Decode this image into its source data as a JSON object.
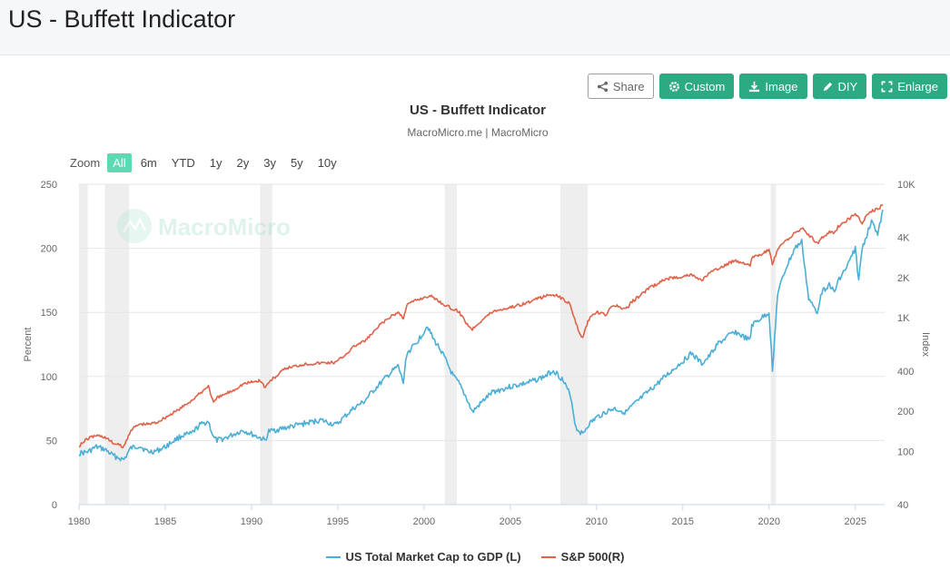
{
  "page": {
    "title": "US - Buffett Indicator"
  },
  "toolbar": {
    "share": "Share",
    "custom": "Custom",
    "image": "Image",
    "diy": "DIY",
    "enlarge": "Enlarge"
  },
  "zoom": {
    "label": "Zoom",
    "options": [
      "All",
      "6m",
      "YTD",
      "1y",
      "2y",
      "3y",
      "5y",
      "10y"
    ],
    "selected": "All"
  },
  "watermark": "MacroMicro",
  "colors": {
    "left_series": "#4aaed6",
    "right_series": "#e0624a",
    "accent": "#2eaa83",
    "recession": "#eeeeee"
  },
  "chart_data": {
    "type": "line",
    "title": "US - Buffett Indicator",
    "subtitle": "MacroMicro.me | MacroMicro",
    "xlabel": "",
    "x_ticks": [
      "1980",
      "1985",
      "1990",
      "1995",
      "2000",
      "2005",
      "2010",
      "2015",
      "2020",
      "2025"
    ],
    "xlim": [
      1980,
      2026.7
    ],
    "y_left": {
      "label": "Percent",
      "lim": [
        0,
        250
      ],
      "ticks": [
        "0",
        "50",
        "100",
        "150",
        "200",
        "250"
      ]
    },
    "y_right": {
      "label": "Index",
      "scale": "log",
      "lim": [
        40,
        10000
      ],
      "ticks": [
        40,
        100,
        200,
        400,
        1000,
        2000,
        4000,
        10000
      ],
      "tick_labels": [
        "40",
        "100",
        "200",
        "400",
        "1K",
        "2K",
        "4K",
        "10K"
      ]
    },
    "recessions": [
      [
        1980.0,
        1980.5
      ],
      [
        1981.5,
        1982.9
      ],
      [
        1990.5,
        1991.2
      ],
      [
        2001.2,
        2001.9
      ],
      [
        2007.9,
        2009.5
      ],
      [
        2020.1,
        2020.4
      ]
    ],
    "grid": true,
    "legend_position": "bottom",
    "series": [
      {
        "name": "US Total Market Cap to GDP (L)",
        "axis": "left",
        "x": [
          1980.0,
          1980.5,
          1981.0,
          1981.5,
          1982.0,
          1982.6,
          1983.0,
          1983.5,
          1984.0,
          1984.5,
          1985.0,
          1985.5,
          1986.0,
          1986.5,
          1987.0,
          1987.5,
          1987.8,
          1988.0,
          1988.5,
          1989.0,
          1989.5,
          1990.0,
          1990.5,
          1990.8,
          1991.0,
          1992.0,
          1993.0,
          1994.0,
          1994.9,
          1995.5,
          1996.0,
          1996.5,
          1997.0,
          1997.5,
          1998.0,
          1998.5,
          1998.8,
          1999.0,
          1999.5,
          2000.0,
          2000.2,
          2000.5,
          2001.0,
          2001.7,
          2002.0,
          2002.5,
          2002.8,
          2003.0,
          2003.5,
          2004.0,
          2005.0,
          2006.0,
          2007.0,
          2007.5,
          2008.0,
          2008.5,
          2008.8,
          2009.2,
          2009.5,
          2010.0,
          2010.5,
          2011.0,
          2011.7,
          2012.0,
          2013.0,
          2014.0,
          2015.0,
          2015.5,
          2016.1,
          2016.5,
          2017.0,
          2018.0,
          2018.9,
          2019.0,
          2019.5,
          2020.0,
          2020.2,
          2020.5,
          2021.0,
          2021.5,
          2021.9,
          2022.3,
          2022.8,
          2023.0,
          2023.5,
          2023.8,
          2024.0,
          2024.5,
          2025.0,
          2025.2,
          2025.4,
          2025.7,
          2026.0,
          2026.3,
          2026.6
        ],
        "values": [
          40,
          41,
          45,
          43,
          38,
          35,
          44,
          46,
          41,
          42,
          45,
          50,
          54,
          55,
          62,
          65,
          52,
          50,
          52,
          55,
          58,
          55,
          52,
          50,
          57,
          60,
          63,
          66,
          62,
          70,
          76,
          80,
          88,
          95,
          102,
          108,
          95,
          118,
          125,
          135,
          140,
          130,
          120,
          100,
          95,
          82,
          72,
          75,
          82,
          88,
          92,
          95,
          100,
          105,
          98,
          85,
          60,
          55,
          62,
          68,
          72,
          75,
          72,
          76,
          88,
          100,
          112,
          118,
          110,
          115,
          125,
          135,
          128,
          140,
          145,
          150,
          105,
          165,
          185,
          200,
          205,
          160,
          150,
          165,
          172,
          165,
          175,
          185,
          200,
          175,
          200,
          212,
          222,
          210,
          230
        ]
      },
      {
        "name": "S&P 500(R)",
        "axis": "right",
        "x": [
          1980.0,
          1980.5,
          1981.0,
          1981.5,
          1982.0,
          1982.6,
          1983.0,
          1983.5,
          1984.0,
          1984.5,
          1985.0,
          1985.5,
          1986.0,
          1986.5,
          1987.0,
          1987.5,
          1987.8,
          1988.0,
          1988.5,
          1989.0,
          1989.5,
          1990.0,
          1990.5,
          1990.8,
          1991.0,
          1992.0,
          1993.0,
          1994.0,
          1994.9,
          1995.5,
          1996.0,
          1996.5,
          1997.0,
          1997.5,
          1998.0,
          1998.5,
          1998.8,
          1999.0,
          1999.5,
          2000.0,
          2000.2,
          2000.5,
          2001.0,
          2001.7,
          2002.0,
          2002.5,
          2002.8,
          2003.0,
          2003.5,
          2004.0,
          2005.0,
          2006.0,
          2007.0,
          2007.5,
          2008.0,
          2008.5,
          2008.8,
          2009.2,
          2009.5,
          2010.0,
          2010.5,
          2011.0,
          2011.7,
          2012.0,
          2013.0,
          2014.0,
          2015.0,
          2015.5,
          2016.1,
          2016.5,
          2017.0,
          2018.0,
          2018.9,
          2019.0,
          2019.5,
          2020.0,
          2020.2,
          2020.5,
          2021.0,
          2021.5,
          2021.9,
          2022.3,
          2022.8,
          2023.0,
          2023.5,
          2023.8,
          2024.0,
          2024.5,
          2025.0,
          2025.2,
          2025.4,
          2025.7,
          2026.0,
          2026.3,
          2026.6
        ],
        "values": [
          110,
          125,
          132,
          128,
          115,
          108,
          145,
          160,
          160,
          165,
          180,
          195,
          215,
          240,
          270,
          310,
          230,
          250,
          270,
          290,
          320,
          330,
          340,
          300,
          330,
          420,
          450,
          460,
          465,
          540,
          620,
          660,
          760,
          900,
          1000,
          1100,
          1000,
          1250,
          1350,
          1420,
          1450,
          1440,
          1300,
          1150,
          1120,
          900,
          820,
          880,
          1000,
          1120,
          1200,
          1300,
          1450,
          1500,
          1400,
          1250,
          900,
          700,
          950,
          1100,
          1050,
          1250,
          1150,
          1300,
          1650,
          1950,
          2050,
          2100,
          1900,
          2150,
          2300,
          2700,
          2500,
          2800,
          2950,
          3230,
          2500,
          3250,
          3800,
          4300,
          4700,
          4200,
          3600,
          3900,
          4400,
          4300,
          4800,
          5400,
          5900,
          5600,
          5100,
          5900,
          6300,
          6500,
          7000
        ]
      }
    ]
  }
}
